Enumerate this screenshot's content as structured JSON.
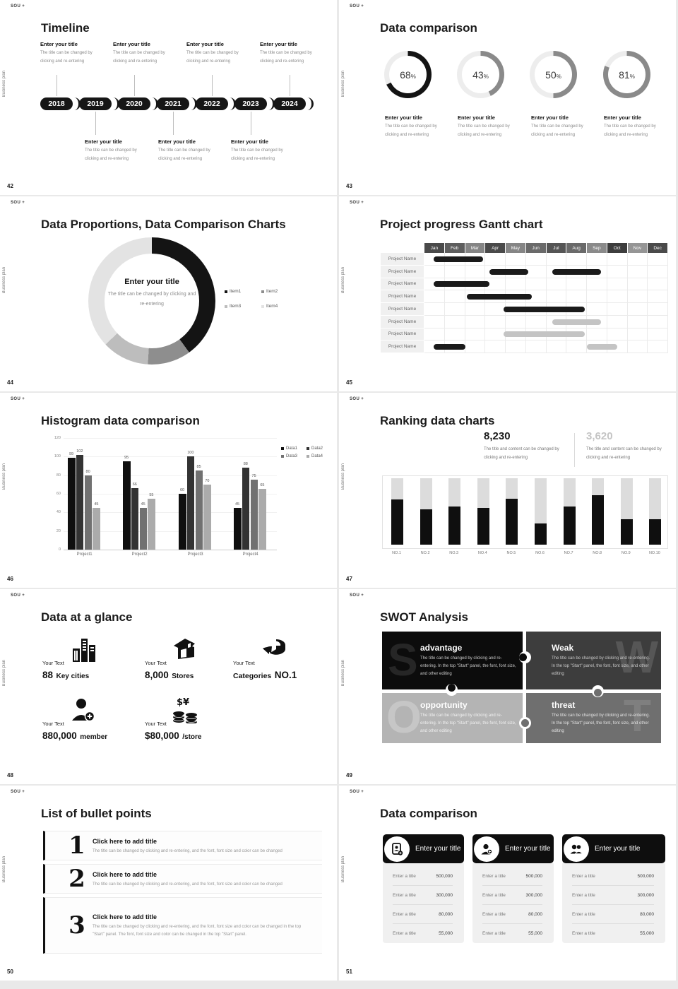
{
  "global": {
    "brand": "SOU +",
    "sidebar_text": "Business plan"
  },
  "chart_data": [
    {
      "type": "donut-progress",
      "slide": 43,
      "values": [
        68,
        43,
        50,
        81
      ],
      "unit": "%",
      "colors": [
        "#141414",
        "#8a8a8a",
        "#8a8a8a",
        "#8a8a8a"
      ],
      "track": "#ededed"
    },
    {
      "type": "pie",
      "slide": 44,
      "labels": [
        "Item1",
        "Item2",
        "Item3",
        "Item4"
      ],
      "values": [
        40,
        11,
        12,
        37
      ],
      "colors": [
        "#141414",
        "#8e8e8e",
        "#bdbdbd",
        "#e3e3e3"
      ],
      "center_title": "Enter your title",
      "center_desc": "The title can be changed by clicking and re-entering"
    },
    {
      "type": "gantt",
      "slide": 45,
      "months": [
        "Jan",
        "Feb",
        "Mar",
        "Apr",
        "May",
        "Jun",
        "Jul",
        "Aug",
        "Sep",
        "Oct",
        "Nov",
        "Dec"
      ],
      "month_colors": [
        "#4a4a4a",
        "#5e5e5e",
        "#858585",
        "#4a4a4a",
        "#858585",
        "#6a6a6a",
        "#555555",
        "#6a6a6a",
        "#8a8a8a",
        "#3d3d3d",
        "#959595",
        "#4a4a4a"
      ],
      "row_label": "Project Name",
      "row_count": 8,
      "bar_colors": {
        "black": "#1a1a1a",
        "gray": "#c4c4c4"
      },
      "bars": [
        {
          "row": 0,
          "start": 0.45,
          "end": 2.9,
          "color": "black"
        },
        {
          "row": 1,
          "start": 3.2,
          "end": 5.1,
          "color": "black"
        },
        {
          "row": 1,
          "start": 6.3,
          "end": 8.7,
          "color": "black"
        },
        {
          "row": 2,
          "start": 0.45,
          "end": 3.2,
          "color": "black"
        },
        {
          "row": 3,
          "start": 2.1,
          "end": 5.3,
          "color": "black"
        },
        {
          "row": 4,
          "start": 3.9,
          "end": 7.9,
          "color": "black"
        },
        {
          "row": 5,
          "start": 6.3,
          "end": 8.7,
          "color": "gray"
        },
        {
          "row": 6,
          "start": 3.9,
          "end": 7.9,
          "color": "gray"
        },
        {
          "row": 7,
          "start": 0.45,
          "end": 2.0,
          "color": "black"
        },
        {
          "row": 7,
          "start": 8.0,
          "end": 9.5,
          "color": "gray"
        }
      ]
    },
    {
      "type": "bar",
      "slide": 46,
      "categories": [
        "Project1",
        "Project2",
        "Project3",
        "Project4"
      ],
      "series": [
        {
          "name": "Data1",
          "color": "#0f0f0f",
          "values": [
            99,
            95,
            60,
            45
          ]
        },
        {
          "name": "Data2",
          "color": "#333333",
          "values": [
            102,
            66,
            100,
            88
          ]
        },
        {
          "name": "Data3",
          "color": "#717171",
          "values": [
            80,
            45,
            85,
            75
          ]
        },
        {
          "name": "Data4",
          "color": "#ababab",
          "values": [
            45,
            55,
            70,
            65
          ]
        }
      ],
      "ylim": [
        0,
        120
      ],
      "yticks": [
        0,
        20,
        40,
        60,
        80,
        100,
        120
      ]
    },
    {
      "type": "bar",
      "slide": 47,
      "categories": [
        "NO.1",
        "NO.2",
        "NO.3",
        "NO.4",
        "NO.5",
        "NO.6",
        "NO.7",
        "NO.8",
        "NO.9",
        "NO.10"
      ],
      "values": [
        68,
        53,
        57,
        55,
        69,
        32,
        57,
        75,
        38,
        38
      ],
      "ymax": 100,
      "bar_color": "#0f0f0f",
      "track_color": "#dcdcdc"
    }
  ],
  "slides": {
    "timeline": {
      "page": "42",
      "title": "Timeline",
      "years": [
        "2018",
        "2019",
        "2020",
        "2021",
        "2022",
        "2023",
        "2024"
      ],
      "item_title": "Enter your title",
      "item_desc": "The title can be changed by clicking and re-entering"
    },
    "donuts": {
      "page": "43",
      "title": "Data comparison",
      "item_title": "Enter your title",
      "item_desc": "The title can be changed by clicking and re-entering"
    },
    "proportions": {
      "page": "44",
      "title": "Data Proportions, Data Comparison Charts"
    },
    "gantt": {
      "page": "45",
      "title": "Project progress Gantt chart"
    },
    "histogram": {
      "page": "46",
      "title": "Histogram data comparison"
    },
    "ranking": {
      "page": "47",
      "title": "Ranking data charts",
      "stat1": "8,230",
      "stat2": "3,620",
      "stat_desc": "The title and content can be changed by clicking and re-entering"
    },
    "glance": {
      "page": "48",
      "title": "Data at a glance",
      "items": [
        {
          "label": "Your Text",
          "value": "88",
          "unit": "Key cities"
        },
        {
          "label": "Your Text",
          "value": "8,000",
          "unit": "Stores"
        },
        {
          "label": "Your Text",
          "value": "NO.1",
          "unit": "Categories"
        },
        {
          "label": "Your Text",
          "value": "880,000",
          "unit": "member"
        },
        {
          "label": "Your Text",
          "value": "$80,000",
          "unit": "/store"
        }
      ]
    },
    "swot": {
      "page": "49",
      "title": "SWOT Analysis",
      "desc": "The title can be changed by clicking and re-entering. In the top \"Start\" panel, the font, font size, and other editing",
      "quads": [
        {
          "letter": "S",
          "title": "advantage"
        },
        {
          "letter": "W",
          "title": "Weak"
        },
        {
          "letter": "O",
          "title": "opportunity"
        },
        {
          "letter": "T",
          "title": "threat"
        }
      ]
    },
    "bullets": {
      "page": "50",
      "title": "List of bullet points",
      "items": [
        {
          "num": "1",
          "title": "Click here to add title",
          "desc": "The title can be changed by clicking and re-entering, and the font, font size and color can be changed"
        },
        {
          "num": "2",
          "title": "Click here to add title",
          "desc": "The title can be changed by clicking and re-entering, and the font, font size and color can be changed"
        },
        {
          "num": "3",
          "title": "Click here to add title",
          "desc": "The title can be changed by clicking and re-entering, and the font, font size and color can be changed in the top \"Start\" panel. The font, font size and color can be changed in the top \"Start\" panel."
        }
      ]
    },
    "cards": {
      "page": "51",
      "title": "Data comparison",
      "card_title": "Enter your title",
      "cards": [
        {
          "rows": [
            {
              "label": "Enter a title",
              "value": "500,000"
            },
            {
              "label": "Enter a title",
              "value": "300,000"
            },
            {
              "label": "Enter a title",
              "value": "80,000"
            },
            {
              "label": "Enter a title",
              "value": "55,000"
            }
          ]
        },
        {
          "rows": [
            {
              "label": "Enter a title",
              "value": "500,000"
            },
            {
              "label": "Enter a title",
              "value": "300,000"
            },
            {
              "label": "Enter a title",
              "value": "80,000"
            },
            {
              "label": "Enter a title",
              "value": "55,000"
            }
          ]
        },
        {
          "rows": [
            {
              "label": "Enter a title",
              "value": "500,000"
            },
            {
              "label": "Enter a title",
              "value": "300,000"
            },
            {
              "label": "Enter a title",
              "value": "80,000"
            },
            {
              "label": "Enter a title",
              "value": "55,000"
            }
          ]
        }
      ]
    }
  }
}
